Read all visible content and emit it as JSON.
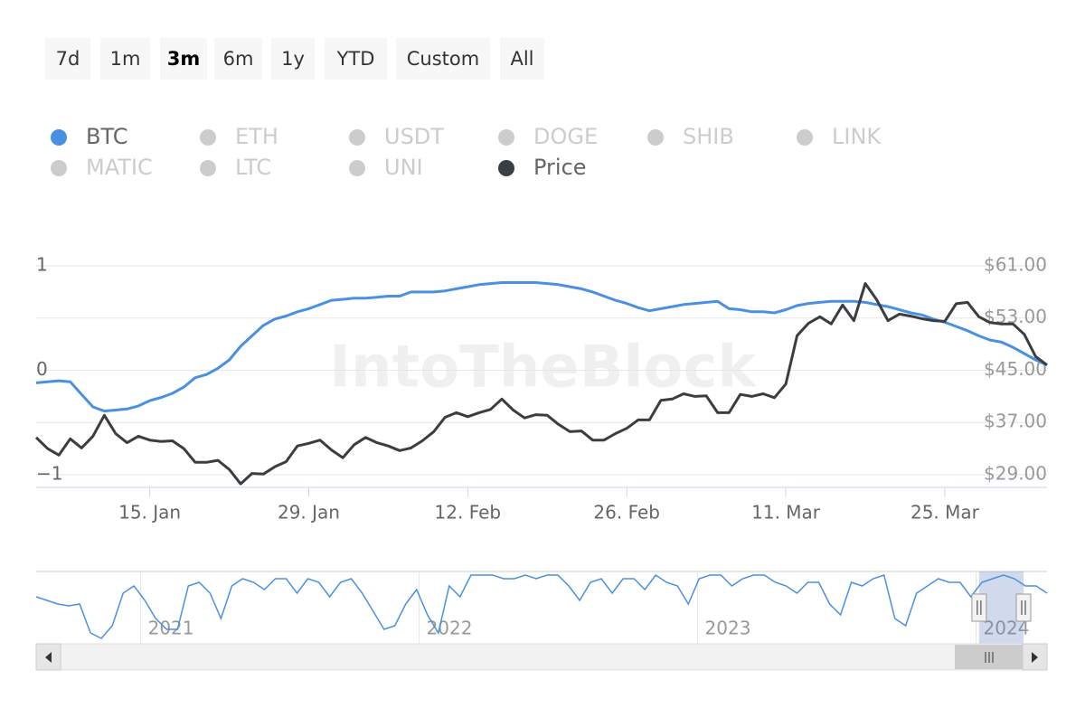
{
  "chart_data": {
    "type": "line",
    "buttons": [
      "7d",
      "1m",
      "3m",
      "6m",
      "1y",
      "YTD",
      "Custom",
      "All"
    ],
    "selected_button": 2,
    "watermark": "IntoTheBlock",
    "x": [
      "2024-01-05",
      "2024-01-06",
      "2024-01-07",
      "2024-01-08",
      "2024-01-09",
      "2024-01-10",
      "2024-01-11",
      "2024-01-12",
      "2024-01-13",
      "2024-01-14",
      "2024-01-15",
      "2024-01-16",
      "2024-01-17",
      "2024-01-18",
      "2024-01-19",
      "2024-01-20",
      "2024-01-21",
      "2024-01-22",
      "2024-01-23",
      "2024-01-24",
      "2024-01-25",
      "2024-01-26",
      "2024-01-27",
      "2024-01-28",
      "2024-01-29",
      "2024-01-30",
      "2024-01-31",
      "2024-02-01",
      "2024-02-02",
      "2024-02-03",
      "2024-02-04",
      "2024-02-05",
      "2024-02-06",
      "2024-02-07",
      "2024-02-08",
      "2024-02-09",
      "2024-02-10",
      "2024-02-11",
      "2024-02-12",
      "2024-02-13",
      "2024-02-14",
      "2024-02-15",
      "2024-02-16",
      "2024-02-17",
      "2024-02-18",
      "2024-02-19",
      "2024-02-20",
      "2024-02-21",
      "2024-02-22",
      "2024-02-23",
      "2024-02-24",
      "2024-02-25",
      "2024-02-26",
      "2024-02-27",
      "2024-02-28",
      "2024-02-29",
      "2024-03-01",
      "2024-03-02",
      "2024-03-03",
      "2024-03-04",
      "2024-03-05",
      "2024-03-06",
      "2024-03-07",
      "2024-03-08",
      "2024-03-09",
      "2024-03-10",
      "2024-03-11",
      "2024-03-12",
      "2024-03-13",
      "2024-03-14",
      "2024-03-15",
      "2024-03-16",
      "2024-03-17",
      "2024-03-18",
      "2024-03-19",
      "2024-03-20",
      "2024-03-21",
      "2024-03-22",
      "2024-03-23",
      "2024-03-24",
      "2024-03-25",
      "2024-03-26",
      "2024-03-27",
      "2024-03-28",
      "2024-03-29",
      "2024-03-30",
      "2024-03-31",
      "2024-04-01",
      "2024-04-02",
      "2024-04-03"
    ],
    "xlim": [
      "2024-01-05",
      "2024-04-03"
    ],
    "xticks": [
      {
        "value": "2024-01-15",
        "label": "15. Jan"
      },
      {
        "value": "2024-01-29",
        "label": "29. Jan"
      },
      {
        "value": "2024-02-12",
        "label": "12. Feb"
      },
      {
        "value": "2024-02-26",
        "label": "26. Feb"
      },
      {
        "value": "2024-03-11",
        "label": "11. Mar"
      },
      {
        "value": "2024-03-25",
        "label": "25. Mar"
      }
    ],
    "ylim": [
      -1.12,
      1
    ],
    "yticks": [
      {
        "value": -1,
        "label": "−1"
      },
      0,
      1
    ],
    "y2lim": [
      27.06,
      61
    ],
    "y2ticks": [
      {
        "value": 29,
        "label": "$29.00"
      },
      {
        "value": 37,
        "label": "$37.00"
      },
      {
        "value": 45,
        "label": "$45.00"
      },
      {
        "value": 53,
        "label": "$53.00"
      },
      {
        "value": 61,
        "label": "$61.00"
      }
    ],
    "grid": true,
    "series": [
      {
        "name": "BTC",
        "color": "#4a90e2",
        "visible": true,
        "axis": "y",
        "values": [
          -0.12,
          -0.11,
          -0.1,
          -0.11,
          -0.23,
          -0.35,
          -0.39,
          -0.38,
          -0.37,
          -0.34,
          -0.29,
          -0.26,
          -0.22,
          -0.16,
          -0.07,
          -0.04,
          0.02,
          0.1,
          0.23,
          0.33,
          0.43,
          0.49,
          0.52,
          0.56,
          0.59,
          0.63,
          0.67,
          0.68,
          0.69,
          0.69,
          0.7,
          0.71,
          0.71,
          0.75,
          0.75,
          0.75,
          0.76,
          0.78,
          0.8,
          0.82,
          0.83,
          0.84,
          0.84,
          0.84,
          0.84,
          0.83,
          0.82,
          0.8,
          0.78,
          0.75,
          0.71,
          0.67,
          0.64,
          0.6,
          0.57,
          0.59,
          0.61,
          0.63,
          0.64,
          0.65,
          0.66,
          0.59,
          0.58,
          0.56,
          0.56,
          0.55,
          0.58,
          0.62,
          0.64,
          0.65,
          0.66,
          0.66,
          0.66,
          0.65,
          0.63,
          0.61,
          0.58,
          0.55,
          0.53,
          0.49,
          0.46,
          0.42,
          0.38,
          0.33,
          0.29,
          0.27,
          0.22,
          0.16,
          0.1,
          0.05
        ]
      },
      {
        "name": "ETH",
        "color": "#cccccc",
        "visible": false
      },
      {
        "name": "USDT",
        "color": "#cccccc",
        "visible": false
      },
      {
        "name": "DOGE",
        "color": "#cccccc",
        "visible": false
      },
      {
        "name": "SHIB",
        "color": "#cccccc",
        "visible": false
      },
      {
        "name": "LINK",
        "color": "#cccccc",
        "visible": false
      },
      {
        "name": "MATIC",
        "color": "#cccccc",
        "visible": false
      },
      {
        "name": "LTC",
        "color": "#cccccc",
        "visible": false
      },
      {
        "name": "UNI",
        "color": "#cccccc",
        "visible": false
      },
      {
        "name": "Price",
        "color": "#3a3d42",
        "visible": true,
        "axis": "y2",
        "values": [
          34.7,
          33.0,
          32.0,
          34.5,
          33.1,
          34.9,
          38.1,
          35.3,
          33.9,
          34.9,
          34.3,
          34.1,
          34.2,
          33.0,
          30.9,
          30.9,
          31.2,
          29.8,
          27.6,
          29.2,
          29.1,
          30.2,
          31.0,
          33.4,
          33.8,
          34.3,
          32.8,
          31.6,
          33.6,
          34.7,
          33.9,
          33.4,
          32.7,
          33.1,
          34.2,
          35.6,
          37.8,
          38.5,
          37.9,
          38.5,
          39.0,
          40.6,
          38.9,
          37.7,
          38.2,
          38.1,
          36.7,
          35.6,
          35.7,
          34.3,
          34.3,
          35.3,
          36.1,
          37.4,
          37.4,
          40.4,
          40.6,
          41.4,
          41.0,
          41.1,
          38.5,
          38.5,
          41.3,
          41.0,
          41.4,
          40.8,
          42.9,
          50.3,
          52.2,
          53.2,
          52.1,
          55.0,
          52.6,
          58.3,
          55.8,
          52.6,
          53.6,
          53.3,
          52.9,
          52.6,
          52.5,
          55.2,
          55.4,
          53.2,
          52.3,
          52.1,
          52.1,
          50.5,
          47.1,
          45.8
        ]
      }
    ],
    "navigator": {
      "xlim": [
        "2020-08-17",
        "2024-04-03"
      ],
      "ylim": [
        -1,
        1
      ],
      "xticks": [
        {
          "value": "2021-01-01",
          "label": "2021"
        },
        {
          "value": "2022-01-01",
          "label": "2022"
        },
        {
          "value": "2023-01-01",
          "label": "2023"
        },
        {
          "value": "2024-01-01",
          "label": "2024"
        }
      ],
      "values": [
        0.3,
        0.2,
        0.1,
        0.05,
        0.1,
        -0.7,
        -0.85,
        -0.5,
        0.4,
        0.6,
        0.2,
        -0.3,
        -0.6,
        -0.6,
        0.6,
        0.7,
        0.4,
        -0.3,
        0.6,
        0.8,
        0.7,
        0.5,
        0.8,
        0.8,
        0.4,
        0.8,
        0.7,
        0.3,
        0.7,
        0.8,
        0.4,
        -0.1,
        -0.6,
        -0.5,
        0.1,
        0.5,
        -0.2,
        -0.7,
        0.6,
        0.3,
        0.9,
        0.9,
        0.9,
        0.8,
        0.8,
        0.9,
        0.8,
        0.9,
        0.9,
        0.6,
        0.2,
        0.7,
        0.8,
        0.4,
        0.8,
        0.8,
        0.5,
        0.9,
        0.7,
        0.6,
        0.1,
        0.8,
        0.9,
        0.9,
        0.6,
        0.8,
        0.9,
        0.9,
        0.7,
        0.6,
        0.4,
        0.7,
        0.7,
        0.1,
        -0.2,
        0.7,
        0.6,
        0.8,
        0.9,
        -0.3,
        -0.5,
        0.4,
        0.6,
        0.8,
        0.7,
        0.7,
        0.3,
        0.7,
        0.8,
        0.9,
        0.8,
        0.6,
        0.6,
        0.4
      ]
    }
  }
}
